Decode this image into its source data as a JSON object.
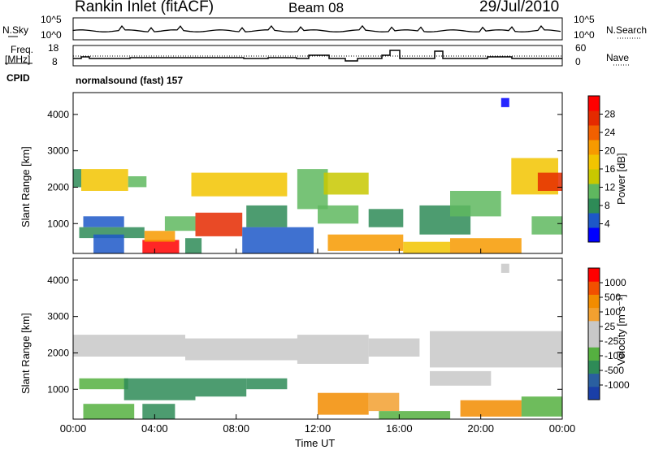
{
  "header": {
    "station": "Rankin Inlet (fitACF)",
    "beam": "Beam 08",
    "date": "29/Jul/2010"
  },
  "noise_panel": {
    "left_label": "N.Sky",
    "right_label": "N.Search",
    "ticks_left": [
      "10^5",
      "10^0"
    ],
    "ticks_right": [
      "10^5",
      "10^0"
    ]
  },
  "freq_panel": {
    "left_label_top": "Freq.",
    "left_label_unit": "[MHz]",
    "right_label": "Nave",
    "ticks_left": [
      "18",
      "8"
    ],
    "ticks_right": [
      "60",
      "0"
    ]
  },
  "cpid": {
    "label": "CPID",
    "value": "normalsound (fast) 157"
  },
  "chart_data": [
    {
      "type": "heatmap",
      "name": "Power",
      "ylabel": "Slant Range [km]",
      "ylim": [
        180,
        4600
      ],
      "yticks": [
        1000,
        2000,
        3000,
        4000
      ],
      "xlim": [
        0,
        24
      ],
      "colorbar_label": "Power [dB]",
      "colorbar_ticks": [
        "28",
        "24",
        "20",
        "16",
        "12",
        "8",
        "4"
      ],
      "colorbar_colors": [
        "#0000ff",
        "#1d58c8",
        "#2e8b57",
        "#5fb85f",
        "#c8c800",
        "#f2c400",
        "#f79a00",
        "#f26000",
        "#e52a00",
        "#ff0000"
      ],
      "regions": [
        {
          "x": [
            0.0,
            0.4
          ],
          "y": [
            2000,
            2500
          ],
          "level": 2
        },
        {
          "x": [
            0.4,
            2.7
          ],
          "y": [
            1900,
            2500
          ],
          "level": 5
        },
        {
          "x": [
            2.7,
            3.6
          ],
          "y": [
            2000,
            2300
          ],
          "level": 3
        },
        {
          "x": [
            0.5,
            2.5
          ],
          "y": [
            900,
            1200
          ],
          "level": 1
        },
        {
          "x": [
            0.3,
            3.5
          ],
          "y": [
            600,
            900
          ],
          "level": 2
        },
        {
          "x": [
            1.0,
            2.5
          ],
          "y": [
            180,
            700
          ],
          "level": 1
        },
        {
          "x": [
            3.4,
            5.2
          ],
          "y": [
            180,
            550
          ],
          "level": 9
        },
        {
          "x": [
            3.5,
            5.0
          ],
          "y": [
            500,
            800
          ],
          "level": 6
        },
        {
          "x": [
            4.5,
            6.0
          ],
          "y": [
            800,
            1200
          ],
          "level": 3
        },
        {
          "x": [
            6.0,
            8.3
          ],
          "y": [
            650,
            1300
          ],
          "level": 8
        },
        {
          "x": [
            5.5,
            6.3
          ],
          "y": [
            180,
            600
          ],
          "level": 2
        },
        {
          "x": [
            5.8,
            10.5
          ],
          "y": [
            1750,
            2400
          ],
          "level": 5
        },
        {
          "x": [
            8.5,
            10.5
          ],
          "y": [
            900,
            1500
          ],
          "level": 2
        },
        {
          "x": [
            8.3,
            11.8
          ],
          "y": [
            180,
            900
          ],
          "level": 1
        },
        {
          "x": [
            11.0,
            12.5
          ],
          "y": [
            1400,
            2500
          ],
          "level": 3
        },
        {
          "x": [
            12.3,
            14.5
          ],
          "y": [
            1800,
            2400
          ],
          "level": 4
        },
        {
          "x": [
            12.0,
            14.0
          ],
          "y": [
            1000,
            1500
          ],
          "level": 3
        },
        {
          "x": [
            12.5,
            16.2
          ],
          "y": [
            250,
            700
          ],
          "level": 6
        },
        {
          "x": [
            14.5,
            16.2
          ],
          "y": [
            900,
            1400
          ],
          "level": 2
        },
        {
          "x": [
            16.2,
            18.5
          ],
          "y": [
            180,
            500
          ],
          "level": 5
        },
        {
          "x": [
            17.0,
            19.5
          ],
          "y": [
            700,
            1500
          ],
          "level": 2
        },
        {
          "x": [
            18.5,
            21.0
          ],
          "y": [
            1200,
            1900
          ],
          "level": 3
        },
        {
          "x": [
            18.5,
            22.0
          ],
          "y": [
            180,
            600
          ],
          "level": 6
        },
        {
          "x": [
            21.5,
            23.8
          ],
          "y": [
            1800,
            2800
          ],
          "level": 5
        },
        {
          "x": [
            22.8,
            24.0
          ],
          "y": [
            1900,
            2400
          ],
          "level": 8
        },
        {
          "x": [
            22.5,
            24.0
          ],
          "y": [
            700,
            1200
          ],
          "level": 3
        },
        {
          "x": [
            21.0,
            21.4
          ],
          "y": [
            4200,
            4450
          ],
          "level": 0
        }
      ]
    },
    {
      "type": "heatmap",
      "name": "Velocity",
      "ylabel": "Slant Range [km]",
      "xlabel": "Time UT",
      "ylim": [
        180,
        4600
      ],
      "yticks": [
        1000,
        2000,
        3000,
        4000
      ],
      "xlim": [
        0,
        24
      ],
      "xticks": [
        "00:00",
        "04:00",
        "08:00",
        "12:00",
        "16:00",
        "20:00",
        "00:00"
      ],
      "colorbar_label": "Velocity [m s⁻¹]",
      "colorbar_ticks": [
        "1000",
        "500",
        "100",
        "25",
        "-25",
        "-100",
        "-500",
        "-1000"
      ],
      "colorbar_colors": [
        "#1a3fa8",
        "#2a5fa0",
        "#2e8b57",
        "#55b040",
        "#c8c8c8",
        "#c8c8c8",
        "#f2a030",
        "#f28c00",
        "#f25000",
        "#ff0000"
      ],
      "regions": [
        {
          "x": [
            0.0,
            5.5
          ],
          "y": [
            1900,
            2500
          ],
          "level": 4
        },
        {
          "x": [
            5.5,
            11.0
          ],
          "y": [
            1800,
            2400
          ],
          "level": 4
        },
        {
          "x": [
            11.0,
            14.5
          ],
          "y": [
            1700,
            2500
          ],
          "level": 4
        },
        {
          "x": [
            14.5,
            17.0
          ],
          "y": [
            1900,
            2400
          ],
          "level": 4
        },
        {
          "x": [
            17.5,
            24.0
          ],
          "y": [
            1600,
            2600
          ],
          "level": 4
        },
        {
          "x": [
            0.3,
            2.7
          ],
          "y": [
            1000,
            1300
          ],
          "level": 3
        },
        {
          "x": [
            2.5,
            6.0
          ],
          "y": [
            700,
            1300
          ],
          "level": 2
        },
        {
          "x": [
            6.0,
            8.5
          ],
          "y": [
            800,
            1300
          ],
          "level": 2
        },
        {
          "x": [
            8.5,
            10.5
          ],
          "y": [
            1000,
            1300
          ],
          "level": 2
        },
        {
          "x": [
            3.4,
            5.0
          ],
          "y": [
            180,
            600
          ],
          "level": 2
        },
        {
          "x": [
            0.5,
            3.0
          ],
          "y": [
            180,
            600
          ],
          "level": 3
        },
        {
          "x": [
            12.0,
            14.5
          ],
          "y": [
            300,
            900
          ],
          "level": 7
        },
        {
          "x": [
            14.5,
            16.0
          ],
          "y": [
            400,
            900
          ],
          "level": 6
        },
        {
          "x": [
            15.0,
            18.5
          ],
          "y": [
            180,
            400
          ],
          "level": 3
        },
        {
          "x": [
            17.5,
            20.5
          ],
          "y": [
            1100,
            1500
          ],
          "level": 4
        },
        {
          "x": [
            19.0,
            22.0
          ],
          "y": [
            250,
            700
          ],
          "level": 7
        },
        {
          "x": [
            22.0,
            24.0
          ],
          "y": [
            250,
            800
          ],
          "level": 3
        },
        {
          "x": [
            21.0,
            21.4
          ],
          "y": [
            4200,
            4450
          ],
          "level": 4
        }
      ]
    }
  ]
}
